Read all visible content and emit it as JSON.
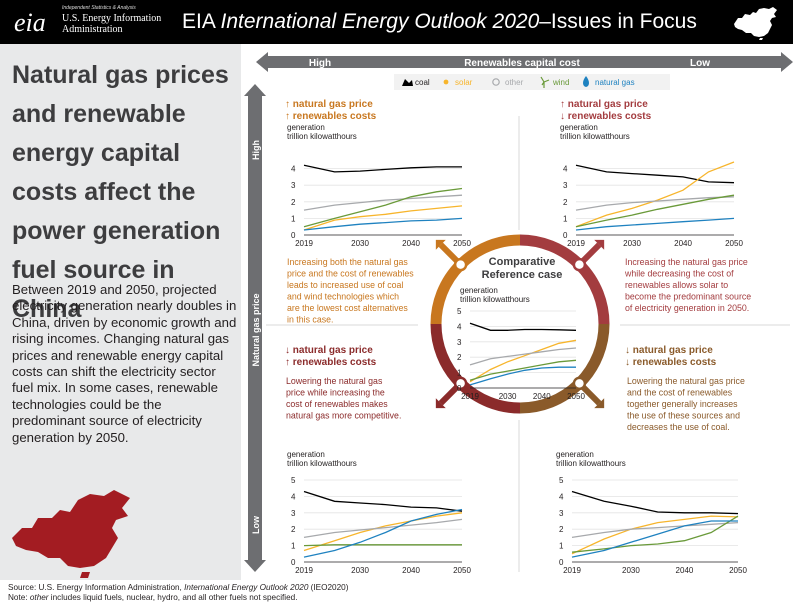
{
  "header": {
    "agency_small": "Independent Statistics & Analysis",
    "agency_line1": "U.S. Energy Information",
    "agency_line2": "Administration",
    "logo_text": "eia",
    "title_prefix": "EIA ",
    "title_italic": "International Energy Outlook 2020",
    "title_suffix": "–Issues in Focus"
  },
  "headline": "Natural gas prices and renewable energy capital costs affect the power generation fuel source in China",
  "body": "Between 2019 and 2050, projected electricity generation nearly doubles in China, driven by economic growth and rising incomes. Changing natural gas prices and renewable energy capital costs can shift the electricity sector fuel mix. In some cases, renewable technologies could be the predominant source of electricity generation by 2050.",
  "footer": {
    "source_prefix": "Source: U.S. Energy Information Administration, ",
    "source_italic": "International Energy Outlook 2020",
    "source_suffix": " (IEO2020)",
    "note_prefix": "Note: ",
    "note_italic": "other",
    "note_suffix": " includes liquid fuels, nuclear, hydro, and all other fuels not specified."
  },
  "axes": {
    "x_label": "Renewables capital cost",
    "x_high": "High",
    "x_low": "Low",
    "y_label": "Natural gas price",
    "y_high": "High",
    "y_low": "Low"
  },
  "legend": [
    {
      "name": "coal",
      "color": "#000000",
      "icon": "coal-icon"
    },
    {
      "name": "solar",
      "color": "#f7b52c",
      "icon": "sun-icon"
    },
    {
      "name": "other",
      "color": "#a7a9ac",
      "icon": "other-icon"
    },
    {
      "name": "wind",
      "color": "#6a9a3a",
      "icon": "wind-icon"
    },
    {
      "name": "natural gas",
      "color": "#1f82c0",
      "icon": "flame-icon"
    }
  ],
  "colors": {
    "coal": "#000000",
    "solar": "#f7b52c",
    "other": "#a7a9ac",
    "wind": "#6a9a3a",
    "gas": "#1f82c0",
    "high_high": "#c8771f",
    "high_low": "#a33c3f",
    "low_high": "#8b2b2b",
    "low_low": "#8a5a2a",
    "axis_arrow": "#6d6e71"
  },
  "quadrants": {
    "tl": {
      "line1": "↑ natural gas price",
      "line2": "↑ renewables costs",
      "color": "#c8771f",
      "desc": [
        "Increasing both the natural gas",
        "price and the cost of renewables",
        "leads to increased use of coal",
        "and wind technologies which",
        "are the lowest cost alternatives",
        "in this case."
      ]
    },
    "tr": {
      "line1": "↑ natural gas price",
      "line2": "↓ renewables costs",
      "color": "#a33c3f",
      "desc": [
        "Increasing the natural gas price",
        "while decreasing the cost of",
        "renewables allows solar to",
        "become the predominant source",
        "of electricity generation in 2050."
      ]
    },
    "bl": {
      "line1": "↓ natural gas price",
      "line2": "↑ renewables costs",
      "color": "#8b2b2b",
      "desc": [
        "Lowering the natural gas",
        "price while increasing the",
        "cost of renewables makes",
        "natural gas more competitive."
      ]
    },
    "br": {
      "line1": "↓ natural gas price",
      "line2": "↓ renewables costs",
      "color": "#8a5a2a",
      "desc": [
        "Lowering the natural gas price",
        "and the cost of renewables",
        "together generally increases",
        "the use of these sources and",
        "decreases the use of coal."
      ]
    },
    "center": {
      "line1": "Comparative",
      "line2": "Reference case"
    }
  },
  "chart_data": [
    {
      "id": "tl",
      "type": "line",
      "ylabel": "generation",
      "ylabel2": "trillion kilowatthours",
      "ylim": [
        0,
        5
      ],
      "yticks": [
        0,
        1,
        2,
        3,
        4
      ],
      "xticks": [
        2019,
        2030,
        2040,
        2050
      ],
      "x": [
        2019,
        2025,
        2030,
        2035,
        2040,
        2045,
        2050
      ],
      "series": [
        {
          "name": "coal",
          "values": [
            4.2,
            3.8,
            3.85,
            3.95,
            4.05,
            4.1,
            4.1
          ]
        },
        {
          "name": "solar",
          "values": [
            0.3,
            0.9,
            1.1,
            1.25,
            1.45,
            1.6,
            1.75
          ]
        },
        {
          "name": "other",
          "values": [
            1.5,
            1.8,
            1.95,
            2.1,
            2.2,
            2.3,
            2.4
          ]
        },
        {
          "name": "wind",
          "values": [
            0.5,
            1.0,
            1.4,
            1.8,
            2.3,
            2.6,
            2.8
          ]
        },
        {
          "name": "natural gas",
          "values": [
            0.3,
            0.5,
            0.65,
            0.75,
            0.85,
            0.9,
            1.0
          ]
        }
      ]
    },
    {
      "id": "tr",
      "type": "line",
      "ylabel": "generation",
      "ylabel2": "trillion kilowatthours",
      "ylim": [
        0,
        5
      ],
      "yticks": [
        0,
        1,
        2,
        3,
        4
      ],
      "xticks": [
        2019,
        2030,
        2040,
        2050
      ],
      "x": [
        2019,
        2025,
        2030,
        2035,
        2040,
        2045,
        2050
      ],
      "series": [
        {
          "name": "coal",
          "values": [
            4.2,
            3.8,
            3.7,
            3.6,
            3.5,
            3.2,
            3.15
          ]
        },
        {
          "name": "solar",
          "values": [
            0.5,
            1.2,
            1.6,
            2.1,
            2.7,
            3.8,
            4.4
          ]
        },
        {
          "name": "other",
          "values": [
            1.5,
            1.8,
            1.95,
            2.05,
            2.15,
            2.25,
            2.3
          ]
        },
        {
          "name": "wind",
          "values": [
            0.5,
            0.9,
            1.2,
            1.55,
            1.85,
            2.15,
            2.4
          ]
        },
        {
          "name": "natural gas",
          "values": [
            0.3,
            0.5,
            0.6,
            0.7,
            0.8,
            0.9,
            1.0
          ]
        }
      ]
    },
    {
      "id": "center",
      "type": "line",
      "ylabel": "generation",
      "ylabel2": "trillion kilowatthours",
      "ylim": [
        0,
        5
      ],
      "yticks": [
        0,
        1,
        2,
        3,
        4,
        5
      ],
      "xticks": [
        2019,
        2030,
        2040,
        2050
      ],
      "x": [
        2019,
        2025,
        2030,
        2035,
        2040,
        2045,
        2050
      ],
      "series": [
        {
          "name": "coal",
          "values": [
            4.2,
            3.75,
            3.75,
            3.8,
            3.8,
            3.78,
            3.75
          ]
        },
        {
          "name": "solar",
          "values": [
            0.4,
            1.2,
            1.7,
            2.1,
            2.5,
            2.9,
            3.1
          ]
        },
        {
          "name": "other",
          "values": [
            1.5,
            1.9,
            2.05,
            2.2,
            2.35,
            2.5,
            2.6
          ]
        },
        {
          "name": "wind",
          "values": [
            0.5,
            0.9,
            1.1,
            1.3,
            1.5,
            1.7,
            1.8
          ]
        },
        {
          "name": "natural gas",
          "values": [
            0.2,
            0.6,
            0.9,
            1.15,
            1.3,
            1.35,
            1.35
          ]
        }
      ]
    },
    {
      "id": "bl",
      "type": "line",
      "ylabel": "generation",
      "ylabel2": "trillion kilowatthours",
      "ylim": [
        0,
        5
      ],
      "yticks": [
        0,
        1,
        2,
        3,
        4,
        5
      ],
      "xticks": [
        2019,
        2030,
        2040,
        2050
      ],
      "x": [
        2019,
        2025,
        2030,
        2035,
        2040,
        2045,
        2050
      ],
      "series": [
        {
          "name": "coal",
          "values": [
            4.3,
            3.7,
            3.6,
            3.5,
            3.35,
            3.3,
            3.1
          ]
        },
        {
          "name": "solar",
          "values": [
            0.7,
            1.3,
            1.8,
            2.2,
            2.5,
            2.8,
            3.0
          ]
        },
        {
          "name": "other",
          "values": [
            1.5,
            1.8,
            1.95,
            2.1,
            2.25,
            2.4,
            2.6
          ]
        },
        {
          "name": "wind",
          "values": [
            1.0,
            1.05,
            1.05,
            1.05,
            1.05,
            1.05,
            1.05
          ]
        },
        {
          "name": "natural gas",
          "values": [
            0.3,
            0.7,
            1.2,
            1.8,
            2.5,
            2.9,
            3.2
          ]
        }
      ]
    },
    {
      "id": "br",
      "type": "line",
      "ylabel": "generation",
      "ylabel2": "trillion kilowatthours",
      "ylim": [
        0,
        5
      ],
      "yticks": [
        0,
        1,
        2,
        3,
        4,
        5
      ],
      "xticks": [
        2019,
        2030,
        2040,
        2050
      ],
      "x": [
        2019,
        2025,
        2030,
        2035,
        2040,
        2045,
        2050
      ],
      "series": [
        {
          "name": "coal",
          "values": [
            4.3,
            3.7,
            3.4,
            3.05,
            3.0,
            3.0,
            2.95
          ]
        },
        {
          "name": "solar",
          "values": [
            0.5,
            1.4,
            2.0,
            2.4,
            2.6,
            2.8,
            2.75
          ]
        },
        {
          "name": "other",
          "values": [
            1.5,
            1.8,
            2.0,
            2.1,
            2.2,
            2.3,
            2.4
          ]
        },
        {
          "name": "wind",
          "values": [
            0.6,
            0.8,
            1.0,
            1.1,
            1.3,
            1.8,
            2.8
          ]
        },
        {
          "name": "natural gas",
          "values": [
            0.3,
            0.7,
            1.2,
            1.7,
            2.2,
            2.5,
            2.5
          ]
        }
      ]
    }
  ]
}
